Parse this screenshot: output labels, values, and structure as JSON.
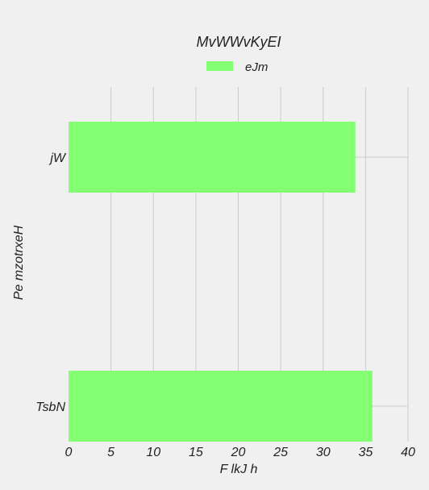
{
  "chart_data": {
    "type": "bar",
    "orientation": "horizontal",
    "title": "MvWWvKyEI",
    "xlabel": "F lkJ h",
    "ylabel": "Pe  mzotrxeH",
    "categories": [
      "jW",
      "TsbN"
    ],
    "series": [
      {
        "name": "eJm",
        "values": [
          33.8,
          35.8
        ],
        "color": "#84ff74"
      }
    ],
    "xlim": [
      0,
      40
    ],
    "xticks": [
      0,
      5,
      10,
      15,
      20,
      25,
      30,
      35,
      40
    ],
    "grid": true,
    "legend": "top-center",
    "background": "#f0f0f0",
    "grid_color": "#cbcbcb"
  }
}
